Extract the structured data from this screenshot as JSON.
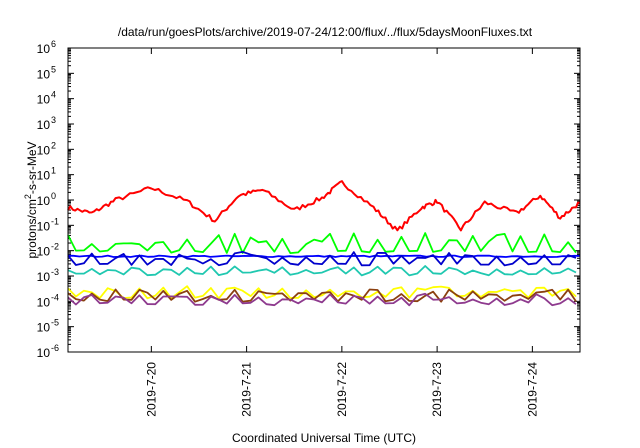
{
  "chart_data": {
    "type": "line",
    "title": "/data/run/goesPlots/archive/2019-07-24/12:00/flux/../flux/5daysMoonFluxes.txt",
    "xlabel": "Coordinated Universal Time (UTC)",
    "ylabel": "protons/cm²-s-sr-MeV",
    "ylabel_parts": {
      "prefix": "protons/cm",
      "sup": "2",
      "suffix": "-s-sr-MeV"
    },
    "y_scale": "log",
    "ylim": [
      1e-06,
      1000000.0
    ],
    "y_ticks": [
      {
        "base": "10",
        "exp": "-6",
        "value": 1e-06
      },
      {
        "base": "10",
        "exp": "-5",
        "value": 1e-05
      },
      {
        "base": "10",
        "exp": "-4",
        "value": 0.0001
      },
      {
        "base": "10",
        "exp": "-3",
        "value": 0.001
      },
      {
        "base": "10",
        "exp": "-2",
        "value": 0.01
      },
      {
        "base": "10",
        "exp": "-1",
        "value": 0.1
      },
      {
        "base": "10",
        "exp": "0",
        "value": 1
      },
      {
        "base": "10",
        "exp": "1",
        "value": 10
      },
      {
        "base": "10",
        "exp": "2",
        "value": 100
      },
      {
        "base": "10",
        "exp": "3",
        "value": 1000
      },
      {
        "base": "10",
        "exp": "4",
        "value": 10000
      },
      {
        "base": "10",
        "exp": "5",
        "value": 100000
      },
      {
        "base": "10",
        "exp": "6",
        "value": 1000000
      }
    ],
    "xlim": [
      "2019-07-19 03:00",
      "2019-07-24 12:00"
    ],
    "x_ticks": [
      {
        "label": "2019-7-20",
        "date": "2019-07-20 00:00"
      },
      {
        "label": "2019-7-21",
        "date": "2019-07-21 00:00"
      },
      {
        "label": "2019-7-22",
        "date": "2019-07-22 00:00"
      },
      {
        "label": "2019-7-23",
        "date": "2019-07-23 00:00"
      },
      {
        "label": "2019-7-24",
        "date": "2019-07-24 00:00"
      }
    ],
    "legend": "none",
    "grid": false,
    "series": [
      {
        "color": "#ff0000",
        "style": "smooth",
        "x": [
          "2019-07-19 03:00",
          "2019-07-19 09:00",
          "2019-07-19 15:00",
          "2019-07-20 00:00",
          "2019-07-20 09:00",
          "2019-07-20 16:00",
          "2019-07-20 22:00",
          "2019-07-21 04:00",
          "2019-07-21 12:00",
          "2019-07-21 19:00",
          "2019-07-22 00:00",
          "2019-07-22 08:00",
          "2019-07-22 14:00",
          "2019-07-22 20:00",
          "2019-07-23 00:00",
          "2019-07-23 06:00",
          "2019-07-23 12:00",
          "2019-07-23 20:00",
          "2019-07-24 02:00",
          "2019-07-24 07:00",
          "2019-07-24 12:00"
        ],
        "y": [
          0.5,
          0.3,
          1.0,
          3.0,
          0.9,
          0.15,
          1.5,
          2.5,
          0.4,
          1.2,
          5.0,
          0.5,
          0.06,
          0.5,
          0.9,
          0.07,
          0.8,
          0.3,
          1.5,
          0.2,
          0.8
        ]
      },
      {
        "color": "#00ff00",
        "style": "spiky",
        "base": 0.009,
        "peak": 0.05,
        "x_step_hours": 2,
        "x_start": "2019-07-19 03:00",
        "x_end": "2019-07-24 12:00"
      },
      {
        "color": "#0000ff",
        "style": "flat",
        "base": 0.006,
        "x_start": "2019-07-19 03:00",
        "x_end": "2019-07-24 12:00"
      },
      {
        "color": "#0000cc",
        "style": "spiky",
        "base": 0.0028,
        "peak": 0.009,
        "x_step_hours": 2,
        "x_start": "2019-07-19 03:00",
        "x_end": "2019-07-24 12:00"
      },
      {
        "color": "#20c8b0",
        "style": "spiky",
        "base": 0.0012,
        "peak": 0.0025,
        "x_step_hours": 2,
        "x_start": "2019-07-19 03:00",
        "x_end": "2019-07-24 12:00"
      },
      {
        "color": "#ffff00",
        "style": "spiky",
        "base": 0.00015,
        "peak": 0.0004,
        "x_step_hours": 2,
        "x_start": "2019-07-19 03:00",
        "x_end": "2019-07-24 12:00"
      },
      {
        "color": "#8b4010",
        "style": "spiky",
        "base": 0.00011,
        "peak": 0.0003,
        "x_step_hours": 2,
        "x_start": "2019-07-19 03:00",
        "x_end": "2019-07-24 12:00"
      },
      {
        "color": "#8e3a8e",
        "style": "spiky",
        "base": 8e-05,
        "peak": 0.0002,
        "x_step_hours": 2,
        "x_start": "2019-07-19 03:00",
        "x_end": "2019-07-24 12:00"
      }
    ]
  }
}
